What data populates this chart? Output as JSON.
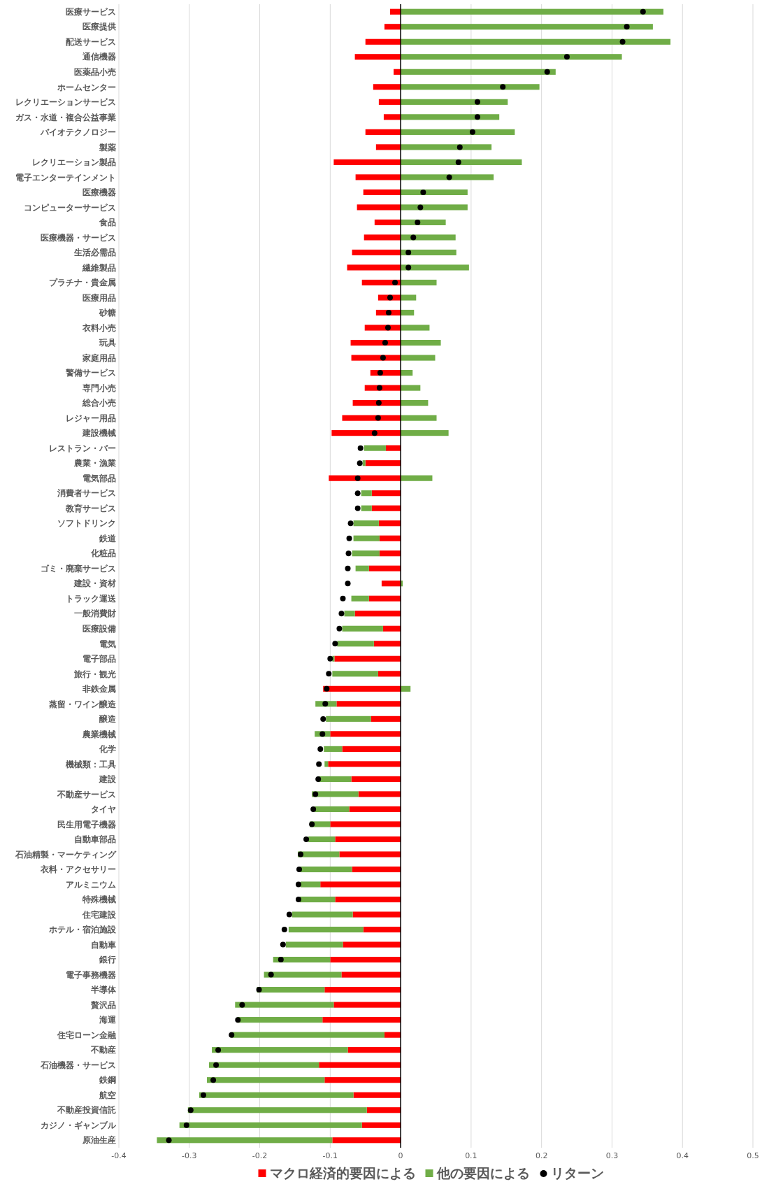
{
  "chart_data": {
    "type": "bar",
    "orientation": "horizontal",
    "stacked": true,
    "categories": [
      "医療サービス",
      "医療提供",
      "配送サービス",
      "通信機器",
      "医薬品小売",
      "ホームセンター",
      "レクリエーションサービス",
      "ガス・水道・複合公益事業",
      "バイオテクノロジー",
      "製薬",
      "レクリエーション製品",
      "電子エンターテインメント",
      "医療機器",
      "コンピューターサービス",
      "食品",
      "医療機器・サービス",
      "生活必需品",
      "繊維製品",
      "プラチナ・貴金属",
      "医療用品",
      "砂糖",
      "衣料小売",
      "玩具",
      "家庭用品",
      "警備サービス",
      "専門小売",
      "総合小売",
      "レジャー用品",
      "建設機械",
      "レストラン・バー",
      "農業・漁業",
      "電気部品",
      "消費者サービス",
      "教育サービス",
      "ソフトドリンク",
      "鉄道",
      "化粧品",
      "ゴミ・廃棄サービス",
      "建設・資材",
      "トラック運送",
      "一般消費財",
      "医療設備",
      "電気",
      "電子部品",
      "旅行・観光",
      "非鉄金属",
      "蒸留・ワイン醸造",
      "醸造",
      "農業機械",
      "化学",
      "機械類：工具",
      "建設",
      "不動産サービス",
      "タイヤ",
      "民生用電子機器",
      "自動車部品",
      "石油精製・マーケティング",
      "衣料・アクセサリー",
      "アルミニウム",
      "特殊機械",
      "住宅建設",
      "ホテル・宿泊施設",
      "自動車",
      "銀行",
      "電子事務機器",
      "半導体",
      "贅沢品",
      "海運",
      "住宅ローン金融",
      "不動産",
      "石油機器・サービス",
      "鉄鋼",
      "航空",
      "不動産投資信託",
      "カジノ・ギャンブル",
      "原油生産"
    ],
    "series": [
      {
        "name": "マクロ経済的要因による",
        "color": "#ff0000",
        "values": [
          -0.015,
          -0.023,
          -0.05,
          -0.065,
          -0.01,
          -0.039,
          -0.031,
          -0.024,
          -0.05,
          -0.035,
          -0.095,
          -0.064,
          -0.053,
          -0.062,
          -0.037,
          -0.052,
          -0.069,
          -0.076,
          -0.055,
          -0.032,
          -0.035,
          -0.051,
          -0.071,
          -0.07,
          -0.043,
          -0.051,
          -0.068,
          -0.083,
          -0.098,
          -0.021,
          -0.05,
          -0.102,
          -0.041,
          -0.041,
          -0.031,
          -0.03,
          -0.03,
          -0.045,
          -0.027,
          -0.045,
          -0.065,
          -0.025,
          -0.038,
          -0.094,
          -0.032,
          -0.11,
          -0.091,
          -0.042,
          -0.1,
          -0.083,
          -0.103,
          -0.07,
          -0.06,
          -0.073,
          -0.1,
          -0.093,
          -0.087,
          -0.069,
          -0.114,
          -0.093,
          -0.068,
          -0.053,
          -0.082,
          -0.1,
          -0.084,
          -0.108,
          -0.095,
          -0.111,
          -0.023,
          -0.075,
          -0.116,
          -0.108,
          -0.067,
          -0.048,
          -0.055,
          -0.097
        ]
      },
      {
        "name": "他の要因による",
        "color": "#70ad47",
        "values": [
          0.373,
          0.358,
          0.383,
          0.314,
          0.22,
          0.197,
          0.152,
          0.14,
          0.162,
          0.129,
          0.172,
          0.132,
          0.095,
          0.095,
          0.064,
          0.078,
          0.079,
          0.097,
          0.051,
          0.022,
          0.019,
          0.041,
          0.057,
          0.049,
          0.017,
          0.028,
          0.039,
          0.051,
          0.068,
          -0.031,
          -0.004,
          0.045,
          -0.015,
          -0.015,
          -0.036,
          -0.037,
          -0.039,
          -0.019,
          0.003,
          -0.025,
          -0.015,
          -0.058,
          -0.052,
          -0.003,
          -0.065,
          0.014,
          -0.03,
          -0.064,
          -0.022,
          -0.026,
          -0.005,
          -0.046,
          -0.066,
          -0.049,
          -0.029,
          -0.038,
          -0.059,
          -0.073,
          -0.028,
          -0.05,
          -0.086,
          -0.106,
          -0.081,
          -0.081,
          -0.11,
          -0.096,
          -0.14,
          -0.121,
          -0.217,
          -0.193,
          -0.156,
          -0.167,
          -0.219,
          -0.254,
          -0.259,
          -0.249
        ]
      },
      {
        "name": "リターン",
        "type": "scatter",
        "color": "#000000",
        "values": [
          0.344,
          0.321,
          0.315,
          0.236,
          0.208,
          0.145,
          0.109,
          0.109,
          0.102,
          0.084,
          0.082,
          0.069,
          0.032,
          0.028,
          0.024,
          0.018,
          0.011,
          0.011,
          -0.008,
          -0.015,
          -0.017,
          -0.018,
          -0.022,
          -0.025,
          -0.029,
          -0.03,
          -0.031,
          -0.032,
          -0.037,
          -0.057,
          -0.058,
          -0.061,
          -0.061,
          -0.061,
          -0.071,
          -0.073,
          -0.074,
          -0.075,
          -0.075,
          -0.082,
          -0.084,
          -0.087,
          -0.093,
          -0.1,
          -0.102,
          -0.105,
          -0.107,
          -0.11,
          -0.111,
          -0.114,
          -0.116,
          -0.117,
          -0.121,
          -0.124,
          -0.126,
          -0.134,
          -0.142,
          -0.144,
          -0.145,
          -0.145,
          -0.158,
          -0.165,
          -0.167,
          -0.17,
          -0.184,
          -0.201,
          -0.225,
          -0.231,
          -0.24,
          -0.259,
          -0.262,
          -0.266,
          -0.28,
          -0.298,
          -0.304,
          -0.329
        ]
      }
    ],
    "xlim": [
      -0.4,
      0.5
    ],
    "xticks": [
      -0.4,
      -0.3,
      -0.2,
      -0.1,
      0,
      0.1,
      0.2,
      0.3,
      0.4,
      0.5
    ],
    "grid": "x",
    "legend": "bottom",
    "marker": "circle"
  }
}
